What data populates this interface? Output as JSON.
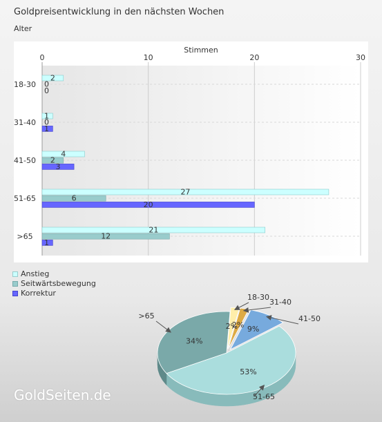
{
  "title": "Goldpreisentwicklung in den nächsten Wochen",
  "subtitle": "Alter",
  "watermark": "GoldSeiten.de",
  "colors": {
    "anstieg": "#ccffff",
    "seitwaerts": "#99cccc",
    "korrektur": "#6666ff",
    "pie": [
      "#ffeeaa",
      "#ddaa44",
      "#77aadd",
      "#aadddd",
      "#7aa9a9"
    ]
  },
  "legend": [
    "Anstieg",
    "Seitwärtsbewegung",
    "Korrektur"
  ],
  "chart_data": [
    {
      "type": "bar",
      "orientation": "horizontal",
      "xlabel": "Stimmen",
      "xlim": [
        0,
        30
      ],
      "xticks": [
        0,
        10,
        20,
        30
      ],
      "grid": true,
      "categories": [
        "18-30",
        "31-40",
        "41-50",
        "51-65",
        ">65"
      ],
      "series": [
        {
          "name": "Anstieg",
          "values": [
            2,
            1,
            4,
            27,
            21
          ]
        },
        {
          "name": "Seitwärtsbewegung",
          "values": [
            0,
            0,
            2,
            6,
            12
          ]
        },
        {
          "name": "Korrektur",
          "values": [
            0,
            1,
            3,
            20,
            1
          ]
        }
      ]
    },
    {
      "type": "pie",
      "labels": [
        "18-30",
        "31-40",
        "41-50",
        "51-65",
        ">65"
      ],
      "values": [
        2,
        2,
        9,
        53,
        34
      ],
      "value_labels": [
        "2%",
        "2%",
        "9%",
        "53%",
        "34%"
      ]
    }
  ]
}
